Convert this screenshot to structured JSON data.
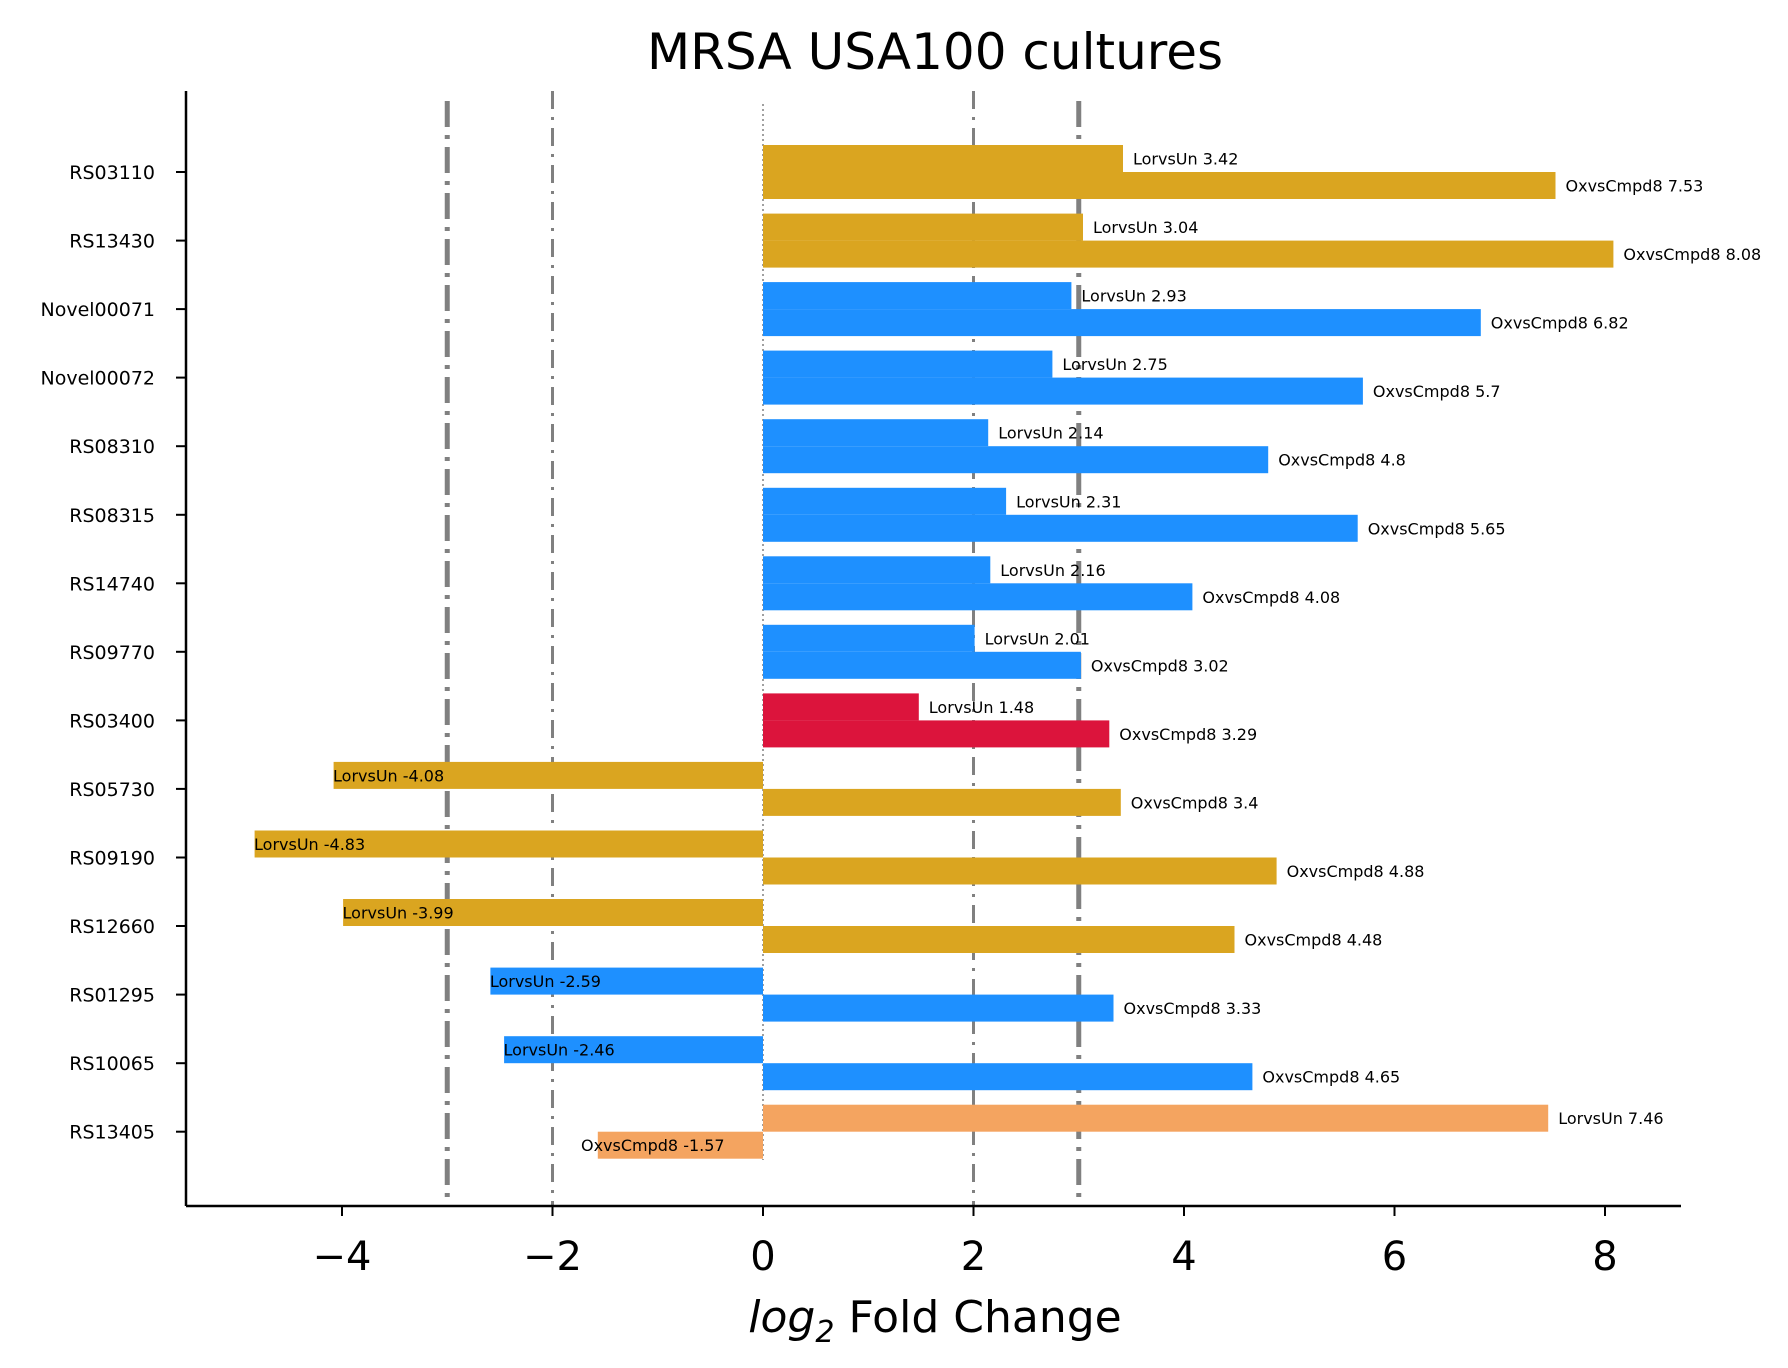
{
  "chart_data": {
    "type": "bar",
    "orientation": "horizontal",
    "title": "MRSA USA100 cultures",
    "xlabel_math": "log",
    "xlabel_sub": "2",
    "xlabel_rest": " Fold Change",
    "xlim": [
      -5.5,
      8.7
    ],
    "xticks": [
      {
        "value": -4,
        "label": "−4"
      },
      {
        "value": -2,
        "label": "−2"
      },
      {
        "value": 0,
        "label": "0"
      },
      {
        "value": 2,
        "label": "2"
      },
      {
        "value": 4,
        "label": "4"
      },
      {
        "value": 6,
        "label": "6"
      },
      {
        "value": 8,
        "label": "8"
      }
    ],
    "reference_lines": [
      {
        "x": -3,
        "style": "thick-dashdot",
        "color": "#808080"
      },
      {
        "x": -2,
        "style": "thin-dashdot",
        "color": "#808080"
      },
      {
        "x": 0,
        "style": "dotted",
        "color": "#808080"
      },
      {
        "x": 2,
        "style": "thin-dashdot",
        "color": "#808080"
      },
      {
        "x": 3,
        "style": "thick-dashdot",
        "color": "#808080"
      }
    ],
    "genes": [
      {
        "gene": "RS03110",
        "color": "#DAA520",
        "bars": [
          {
            "series": "LorvsUn",
            "value": 3.42,
            "label": "LorvsUn 3.42"
          },
          {
            "series": "OxvsCmpd8",
            "value": 7.53,
            "label": "OxvsCmpd8 7.53"
          }
        ]
      },
      {
        "gene": "RS13430",
        "color": "#DAA520",
        "bars": [
          {
            "series": "LorvsUn",
            "value": 3.04,
            "label": "LorvsUn 3.04"
          },
          {
            "series": "OxvsCmpd8",
            "value": 8.08,
            "label": "OxvsCmpd8 8.08"
          }
        ]
      },
      {
        "gene": "Novel00071",
        "color": "#1E90FF",
        "bars": [
          {
            "series": "LorvsUn",
            "value": 2.93,
            "label": "LorvsUn 2.93"
          },
          {
            "series": "OxvsCmpd8",
            "value": 6.82,
            "label": "OxvsCmpd8 6.82"
          }
        ]
      },
      {
        "gene": "Novel00072",
        "color": "#1E90FF",
        "bars": [
          {
            "series": "LorvsUn",
            "value": 2.75,
            "label": "LorvsUn 2.75"
          },
          {
            "series": "OxvsCmpd8",
            "value": 5.7,
            "label": "OxvsCmpd8 5.7"
          }
        ]
      },
      {
        "gene": "RS08310",
        "color": "#1E90FF",
        "bars": [
          {
            "series": "LorvsUn",
            "value": 2.14,
            "label": "LorvsUn 2.14"
          },
          {
            "series": "OxvsCmpd8",
            "value": 4.8,
            "label": "OxvsCmpd8 4.8"
          }
        ]
      },
      {
        "gene": "RS08315",
        "color": "#1E90FF",
        "bars": [
          {
            "series": "LorvsUn",
            "value": 2.31,
            "label": "LorvsUn 2.31"
          },
          {
            "series": "OxvsCmpd8",
            "value": 5.65,
            "label": "OxvsCmpd8 5.65"
          }
        ]
      },
      {
        "gene": "RS14740",
        "color": "#1E90FF",
        "bars": [
          {
            "series": "LorvsUn",
            "value": 2.16,
            "label": "LorvsUn 2.16"
          },
          {
            "series": "OxvsCmpd8",
            "value": 4.08,
            "label": "OxvsCmpd8 4.08"
          }
        ]
      },
      {
        "gene": "RS09770",
        "color": "#1E90FF",
        "bars": [
          {
            "series": "LorvsUn",
            "value": 2.01,
            "label": "LorvsUn 2.01"
          },
          {
            "series": "OxvsCmpd8",
            "value": 3.02,
            "label": "OxvsCmpd8 3.02"
          }
        ]
      },
      {
        "gene": "RS03400",
        "color": "#DC143C",
        "bars": [
          {
            "series": "LorvsUn",
            "value": 1.48,
            "label": "LorvsUn 1.48"
          },
          {
            "series": "OxvsCmpd8",
            "value": 3.29,
            "label": "OxvsCmpd8 3.29"
          }
        ]
      },
      {
        "gene": "RS05730",
        "color": "#DAA520",
        "bars": [
          {
            "series": "LorvsUn",
            "value": -4.08,
            "label": "LorvsUn -4.08"
          },
          {
            "series": "OxvsCmpd8",
            "value": 3.4,
            "label": "OxvsCmpd8 3.4"
          }
        ]
      },
      {
        "gene": "RS09190",
        "color": "#DAA520",
        "bars": [
          {
            "series": "LorvsUn",
            "value": -4.83,
            "label": "LorvsUn -4.83"
          },
          {
            "series": "OxvsCmpd8",
            "value": 4.88,
            "label": "OxvsCmpd8 4.88"
          }
        ]
      },
      {
        "gene": "RS12660",
        "color": "#DAA520",
        "bars": [
          {
            "series": "LorvsUn",
            "value": -3.99,
            "label": "LorvsUn -3.99"
          },
          {
            "series": "OxvsCmpd8",
            "value": 4.48,
            "label": "OxvsCmpd8 4.48"
          }
        ]
      },
      {
        "gene": "RS01295",
        "color": "#1E90FF",
        "bars": [
          {
            "series": "LorvsUn",
            "value": -2.59,
            "label": "LorvsUn -2.59"
          },
          {
            "series": "OxvsCmpd8",
            "value": 3.33,
            "label": "OxvsCmpd8 3.33"
          }
        ]
      },
      {
        "gene": "RS10065",
        "color": "#1E90FF",
        "bars": [
          {
            "series": "LorvsUn",
            "value": -2.46,
            "label": "LorvsUn -2.46"
          },
          {
            "series": "OxvsCmpd8",
            "value": 4.65,
            "label": "OxvsCmpd8 4.65"
          }
        ]
      },
      {
        "gene": "RS13405",
        "color": "#F4A460",
        "bars": [
          {
            "series": "LorvsUn",
            "value": 7.46,
            "label": "LorvsUn 7.46"
          },
          {
            "series": "OxvsCmpd8",
            "value": -1.57,
            "label": "OxvsCmpd8 -1.57"
          }
        ]
      }
    ],
    "grid": false,
    "legend": "none"
  }
}
